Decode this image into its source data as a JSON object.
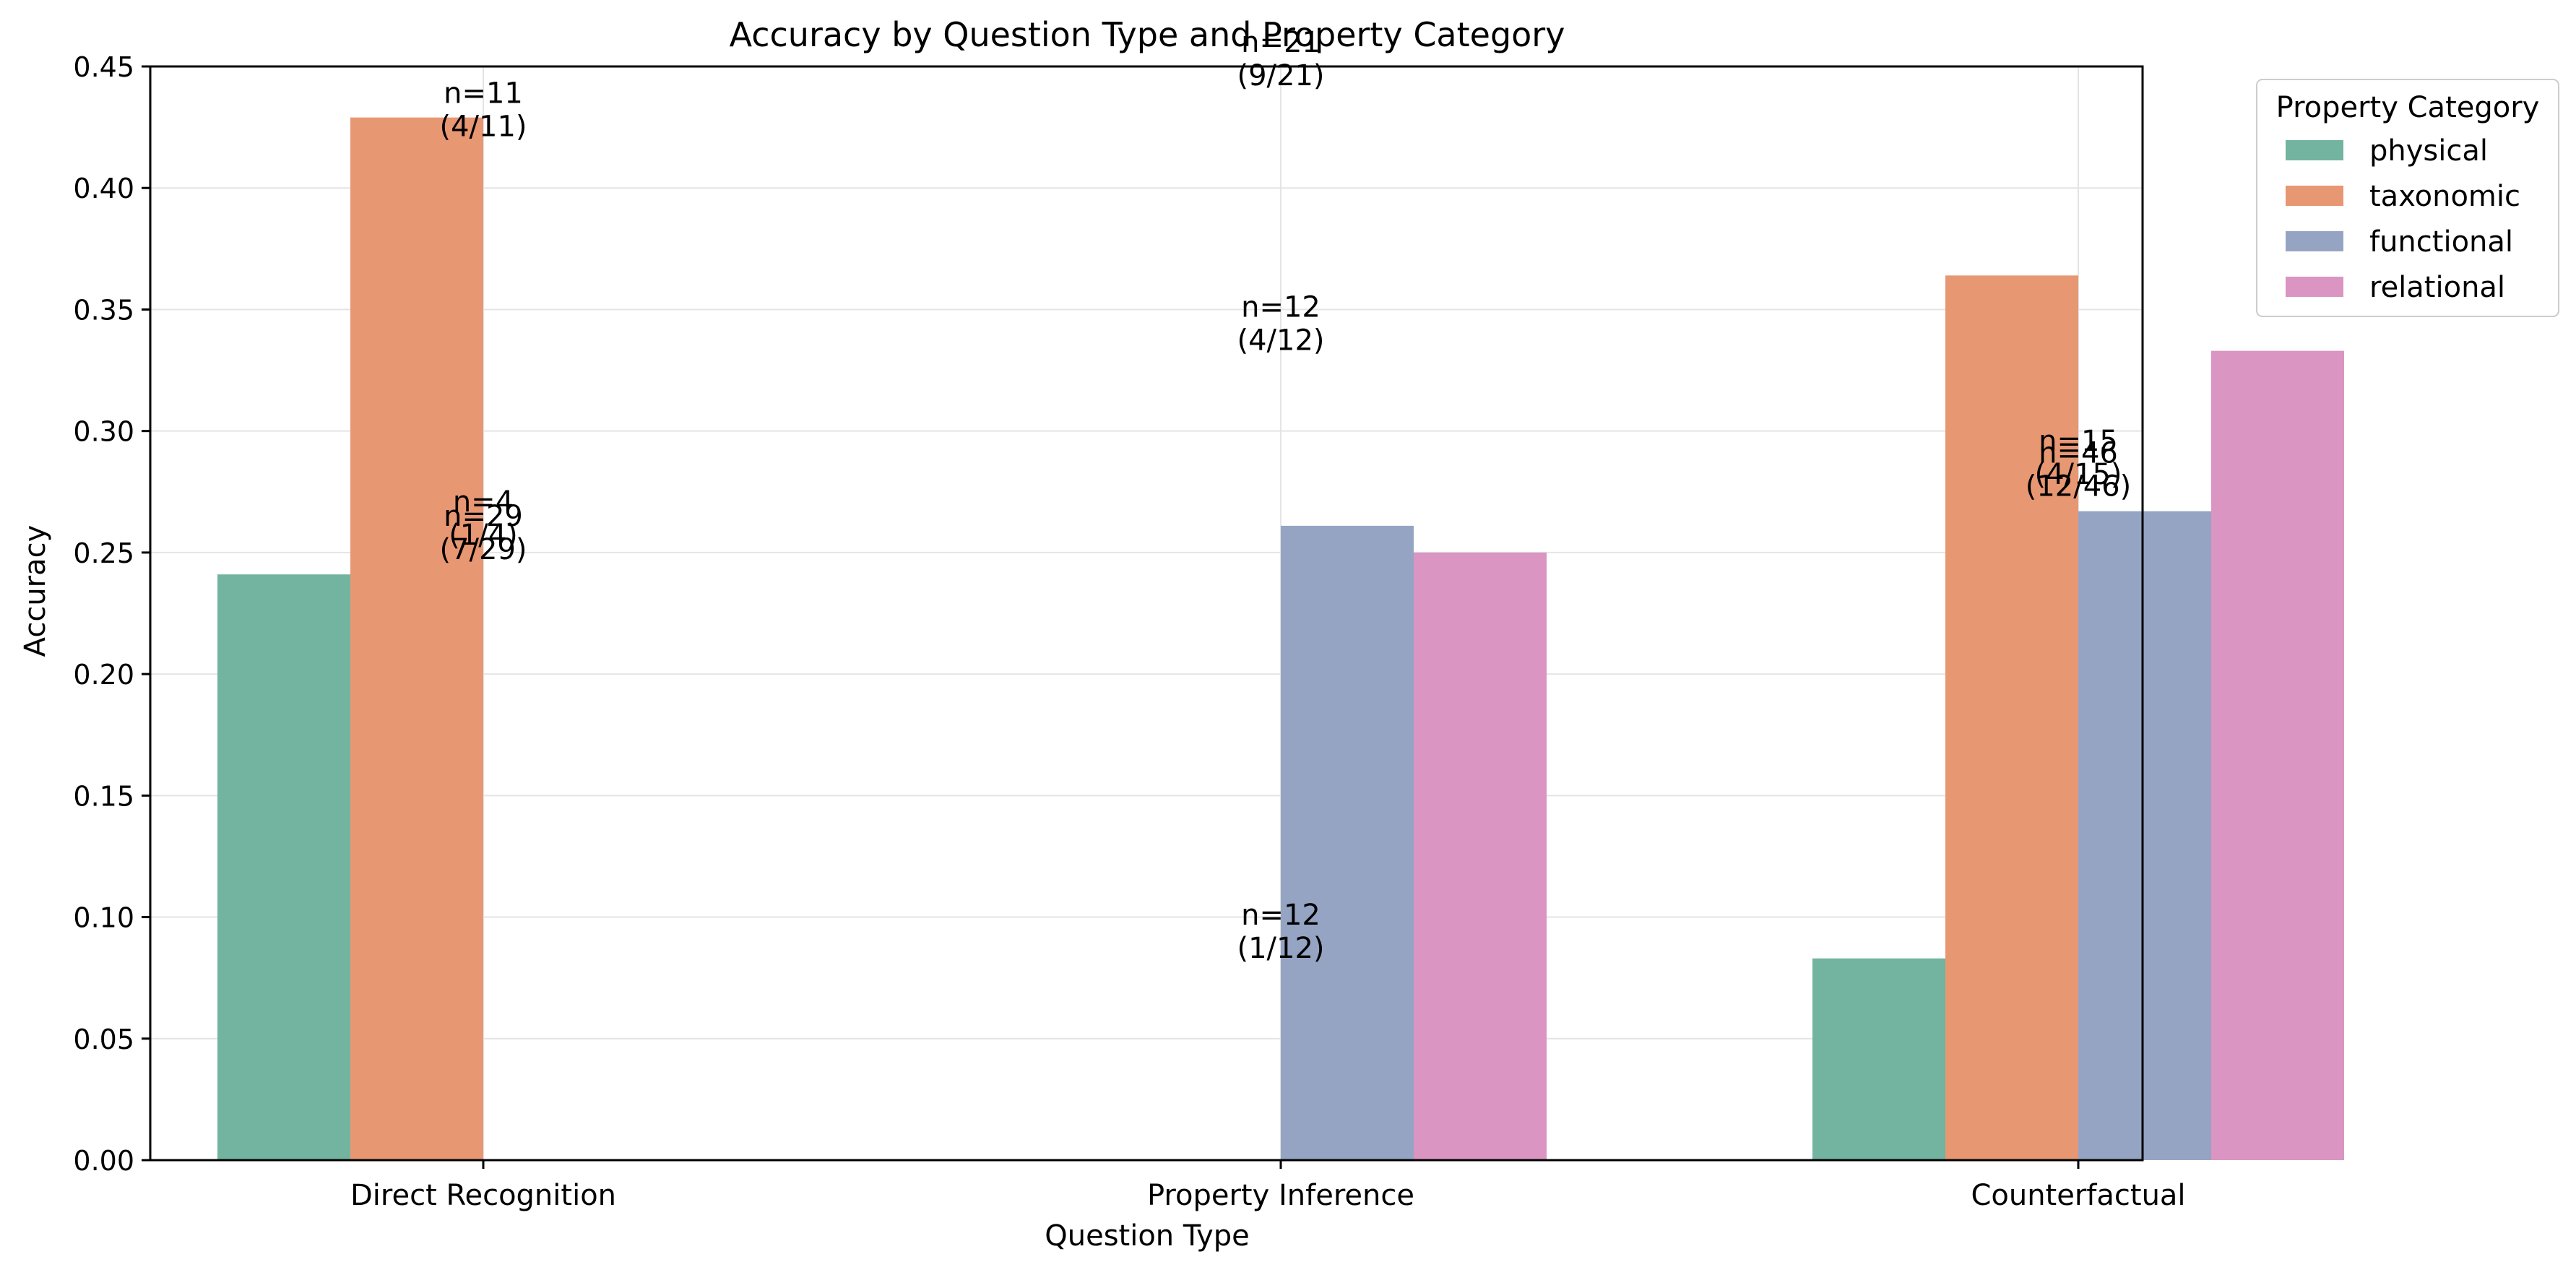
{
  "chart_data": {
    "type": "bar",
    "title": "Accuracy by Question Type and Property Category",
    "xlabel": "Question Type",
    "ylabel": "Accuracy",
    "ylim": [
      0,
      0.45
    ],
    "yticks": [
      0.0,
      0.05,
      0.1,
      0.15,
      0.2,
      0.25,
      0.3,
      0.35,
      0.4,
      0.45
    ],
    "ytick_labels": [
      "0.00",
      "0.05",
      "0.10",
      "0.15",
      "0.20",
      "0.25",
      "0.30",
      "0.35",
      "0.40",
      "0.45"
    ],
    "grid": true,
    "categories": [
      "Direct Recognition",
      "Property Inference",
      "Counterfactual"
    ],
    "legend": {
      "title": "Property Category",
      "placement": "outside-top-right"
    },
    "series": [
      {
        "name": "physical",
        "color": "#72b4a0",
        "values": [
          0.241,
          null,
          0.083
        ]
      },
      {
        "name": "taxonomic",
        "color": "#e89773",
        "values": [
          0.429,
          null,
          0.364
        ]
      },
      {
        "name": "functional",
        "color": "#95a4c3",
        "values": [
          null,
          0.261,
          0.267
        ]
      },
      {
        "name": "relational",
        "color": "#da95c2",
        "values": [
          null,
          0.25,
          0.333
        ]
      }
    ],
    "annotations": [
      {
        "category": "Direct Recognition",
        "y": 0.429,
        "lines": [
          "n=11",
          "(4/11)"
        ]
      },
      {
        "category": "Direct Recognition",
        "y": 0.261,
        "lines": [
          "n=4",
          "(1/4)"
        ]
      },
      {
        "category": "Direct Recognition",
        "y": 0.255,
        "lines": [
          "n=29",
          "(7/29)"
        ]
      },
      {
        "category": "Property Inference",
        "y": 0.45,
        "lines": [
          "n=21",
          "(9/21)"
        ]
      },
      {
        "category": "Property Inference",
        "y": 0.341,
        "lines": [
          "n=12",
          "(4/12)"
        ]
      },
      {
        "category": "Property Inference",
        "y": 0.091,
        "lines": [
          "n=12",
          "(1/12)"
        ]
      },
      {
        "category": "Counterfactual",
        "y": 0.286,
        "lines": [
          "n=15",
          "(4/15)"
        ]
      },
      {
        "category": "Counterfactual",
        "y": 0.281,
        "lines": [
          "n=46",
          "(12/46)"
        ]
      }
    ]
  }
}
